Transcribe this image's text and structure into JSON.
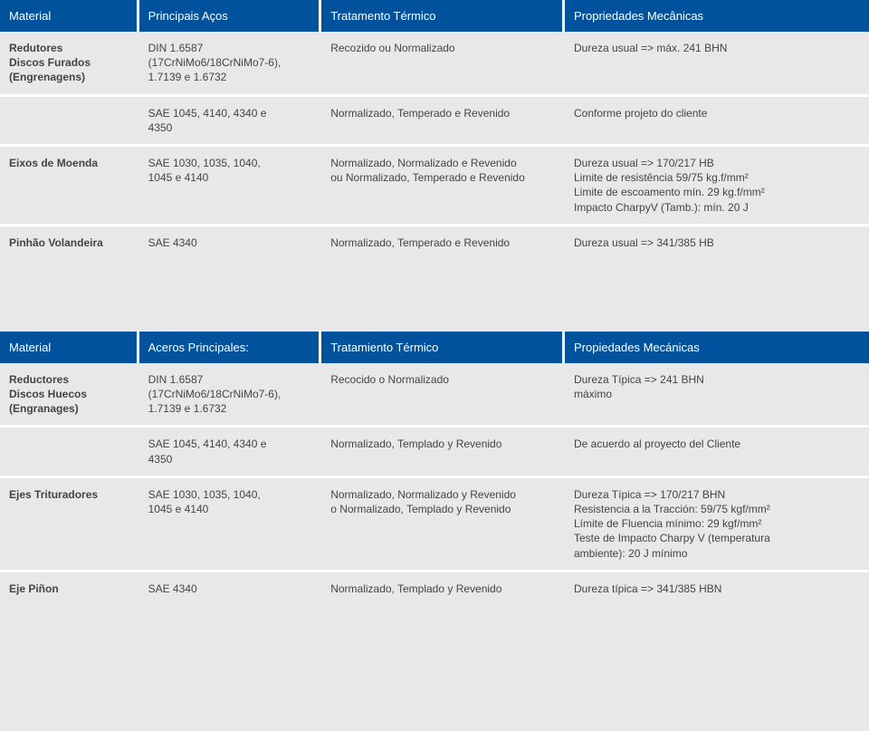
{
  "table1": {
    "headers": [
      "Material",
      "Principais Aços",
      "Tratamento Térmico",
      "Propriedades Mecânicas"
    ],
    "rows": [
      {
        "c1a": "Redutores",
        "c1b": "Discos Furados",
        "c1c": "(Engrenagens)",
        "c2a": "DIN 1.6587",
        "c2b": "(17CrNiMo6/18CrNiMo7-6),",
        "c2c": "1.7139 e 1.6732",
        "c3": "Recozido ou Normalizado",
        "c4": "Dureza usual => máx. 241 BHN"
      },
      {
        "c1": "",
        "c2a": "SAE 1045, 4140, 4340 e",
        "c2b": "4350",
        "c3": "Normalizado, Temperado e Revenido",
        "c4": "Conforme projeto do cliente"
      },
      {
        "c1": "Eixos de Moenda",
        "c2a": "SAE 1030, 1035, 1040,",
        "c2b": "1045 e 4140",
        "c3a": "Normalizado, Normalizado e Revenido",
        "c3b": "ou Normalizado, Temperado e Revenido",
        "c4a": "Dureza usual => 170/217 HB",
        "c4b": "Limite de resistência 59/75 kg.f/mm²",
        "c4c": "Limite de escoamento mín. 29 kg.f/mm²",
        "c4d": "Impacto CharpyV (Tamb.): mín. 20 J"
      },
      {
        "c1": "Pinhão Volandeira",
        "c2": "SAE 4340",
        "c3": "Normalizado, Temperado e Revenido",
        "c4": "Dureza usual => 341/385 HB"
      }
    ]
  },
  "table2": {
    "headers": [
      "Material",
      "Aceros Principales:",
      "Tratamiento Térmico",
      "Propiedades Mecánicas"
    ],
    "rows": [
      {
        "c1a": "Reductores",
        "c1b": "Discos Huecos",
        "c1c": "(Engranages)",
        "c2a": "DIN 1.6587",
        "c2b": "(17CrNiMo6/18CrNiMo7-6),",
        "c2c": "1.7139 e 1.6732",
        "c3": "Recocido o Normalizado",
        "c4a": "Dureza Típica => 241 BHN",
        "c4b": "máximo"
      },
      {
        "c1": "",
        "c2a": "SAE 1045, 4140, 4340 e",
        "c2b": "4350",
        "c3": "Normalizado, Templado y Revenido",
        "c4": "De acuerdo al proyecto del Cliente"
      },
      {
        "c1": "Ejes Trituradores",
        "c2a": "SAE 1030, 1035, 1040,",
        "c2b": "1045 e 4140",
        "c3a": "Normalizado, Normalizado y Revenido",
        "c3b": "o Normalizado, Templado y Revenido",
        "c4a": "Dureza Típica => 170/217 BHN",
        "c4b": "Resistencia a la Tracción: 59/75 kgf/mm²",
        "c4c": "Límite de Fluencia mínimo: 29 kgf/mm²",
        "c4d": "Teste de Impacto Charpy V (temperatura",
        "c4e": "ambiente): 20 J mínimo"
      },
      {
        "c1": "Eje Piñon",
        "c2": "SAE 4340",
        "c3": "Normalizado, Templado y Revenido",
        "c4": "Dureza típica => 341/385 HBN"
      }
    ]
  }
}
